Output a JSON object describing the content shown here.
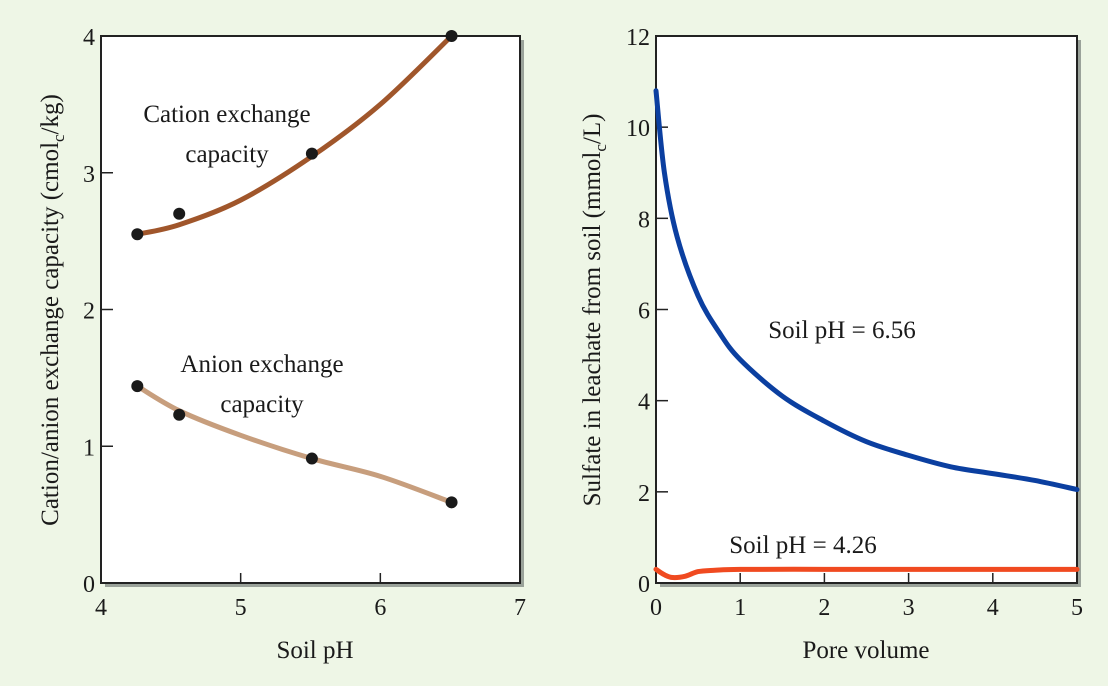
{
  "colors": {
    "background": "#eef6e6",
    "plot_background": "#ffffff",
    "cec_curve": "#a0562b",
    "aec_curve": "#c79e7d",
    "ph656_curve": "#0b3fa0",
    "ph426_curve": "#f04a20"
  },
  "chart_data": [
    {
      "type": "line",
      "xlabel": "Soil pH",
      "ylabel": "Cation/anion exchange capacity (cmol",
      "ylabel_sub": "c",
      "ylabel_tail": "/kg)",
      "xlim": [
        4,
        7
      ],
      "ylim": [
        0,
        4
      ],
      "xticks": [
        "4",
        "5",
        "6",
        "7"
      ],
      "yticks": [
        "0",
        "1",
        "2",
        "3",
        "4"
      ],
      "grid": false,
      "series": [
        {
          "name": "Cation exchange capacity",
          "label_lines": [
            "Cation exchange",
            "capacity"
          ],
          "points": [
            [
              4.26,
              2.55
            ],
            [
              4.56,
              2.7
            ],
            [
              5.51,
              3.14
            ],
            [
              6.51,
              4.0
            ]
          ],
          "curve": [
            [
              4.26,
              2.55
            ],
            [
              4.56,
              2.62
            ],
            [
              5.0,
              2.8
            ],
            [
              5.51,
              3.12
            ],
            [
              6.0,
              3.5
            ],
            [
              6.51,
              4.0
            ]
          ],
          "color": "#a0562b"
        },
        {
          "name": "Anion exchange capacity",
          "label_lines": [
            "Anion exchange",
            "capacity"
          ],
          "points": [
            [
              4.26,
              1.44
            ],
            [
              4.56,
              1.23
            ],
            [
              5.51,
              0.91
            ],
            [
              6.51,
              0.59
            ]
          ],
          "curve": [
            [
              4.26,
              1.44
            ],
            [
              4.56,
              1.26
            ],
            [
              5.0,
              1.08
            ],
            [
              5.51,
              0.91
            ],
            [
              6.0,
              0.78
            ],
            [
              6.51,
              0.59
            ]
          ],
          "color": "#c79e7d"
        }
      ]
    },
    {
      "type": "line",
      "xlabel": "Pore volume",
      "ylabel": "Sulfate in leachate from soil (mmol",
      "ylabel_sub": "c",
      "ylabel_tail": "/L)",
      "xlim": [
        0,
        5
      ],
      "ylim": [
        0,
        12
      ],
      "xticks": [
        "0",
        "1",
        "2",
        "3",
        "4",
        "5"
      ],
      "yticks": [
        "0",
        "2",
        "4",
        "6",
        "8",
        "10",
        "12"
      ],
      "grid": false,
      "series": [
        {
          "name": "Soil pH = 6.56",
          "x": [
            0,
            0.1,
            0.25,
            0.5,
            0.75,
            1.0,
            1.5,
            2.0,
            2.5,
            3.0,
            3.5,
            4.0,
            4.5,
            5.0
          ],
          "values": [
            10.8,
            9.0,
            7.6,
            6.3,
            5.5,
            4.9,
            4.1,
            3.55,
            3.1,
            2.8,
            2.55,
            2.4,
            2.25,
            2.05
          ],
          "color": "#0b3fa0"
        },
        {
          "name": "Soil pH = 4.26",
          "x": [
            0,
            0.1,
            0.2,
            0.35,
            0.5,
            0.7,
            1.0,
            2.0,
            3.0,
            4.0,
            5.0
          ],
          "values": [
            0.3,
            0.18,
            0.12,
            0.15,
            0.25,
            0.28,
            0.3,
            0.3,
            0.3,
            0.3,
            0.3
          ],
          "color": "#f04a20"
        }
      ]
    }
  ]
}
